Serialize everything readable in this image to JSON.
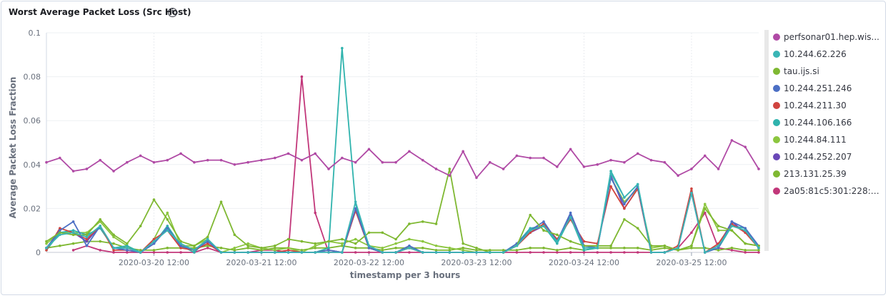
{
  "panel": {
    "title": "Worst Average Packet Loss (Src Host)",
    "info_icon": "info-icon"
  },
  "chart_data": {
    "type": "line",
    "ylabel": "Average Packet Loss Fraction",
    "xlabel": "timestamp per 3 hours",
    "ylim": [
      0,
      0.1
    ],
    "yticks": [
      "0",
      "0.02",
      "0.04",
      "0.06",
      "0.08",
      "0.1"
    ],
    "xticks": [
      "2020-03-20 12:00",
      "2020-03-21 12:00",
      "2020-03-22 12:00",
      "2020-03-23 12:00",
      "2020-03-24 12:00",
      "2020-03-25 12:00"
    ],
    "xtick_index": [
      8,
      16,
      24,
      32,
      40,
      48
    ],
    "n_points": 54,
    "grid": true,
    "legend_position": "right",
    "series": [
      {
        "name": "perfsonar01.hep.wis...",
        "color": "#b04aa5",
        "values": [
          0.041,
          0.043,
          0.037,
          0.038,
          0.042,
          0.037,
          0.041,
          0.044,
          0.041,
          0.042,
          0.045,
          0.041,
          0.042,
          0.042,
          0.04,
          0.041,
          0.042,
          0.043,
          0.045,
          0.042,
          0.045,
          0.038,
          0.043,
          0.041,
          0.047,
          0.041,
          0.041,
          0.046,
          0.042,
          0.038,
          0.035,
          0.046,
          0.034,
          0.041,
          0.038,
          0.044,
          0.043,
          0.043,
          0.039,
          0.047,
          0.039,
          0.04,
          0.042,
          0.041,
          0.045,
          0.042,
          0.041,
          0.035,
          0.038,
          0.044,
          0.038,
          0.051,
          0.048,
          0.038
        ]
      },
      {
        "name": "10.244.62.226",
        "color": "#3ab5b5",
        "values": [
          0.002,
          0.008,
          0.009,
          0.007,
          0.012,
          0.002,
          0.002,
          0,
          0.005,
          0.01,
          0.004,
          0.001,
          0.006,
          0,
          0,
          0,
          0,
          0,
          0,
          0,
          0,
          0,
          0,
          0.023,
          0.003,
          0,
          0,
          0.002,
          0,
          0,
          0,
          0,
          0,
          0,
          0,
          0.003,
          0.01,
          0.012,
          0.005,
          0.016,
          0.002,
          0.002,
          0.036,
          0.025,
          0.031,
          0,
          0,
          0.002,
          0.027,
          0,
          0.003,
          0.012,
          0.01,
          0.002
        ]
      },
      {
        "name": "tau.ijs.si",
        "color": "#7fb832",
        "values": [
          0.005,
          0.009,
          0.008,
          0.008,
          0.015,
          0.008,
          0.004,
          0.012,
          0.024,
          0.015,
          0.005,
          0.003,
          0.007,
          0.023,
          0.008,
          0.003,
          0.002,
          0.003,
          0.006,
          0.005,
          0.004,
          0.005,
          0.006,
          0.004,
          0.009,
          0.009,
          0.006,
          0.013,
          0.014,
          0.013,
          0.038,
          0.004,
          0.002,
          0,
          0,
          0.003,
          0.017,
          0.01,
          0.008,
          0.005,
          0.003,
          0.003,
          0.003,
          0.015,
          0.011,
          0.003,
          0.003,
          0.001,
          0.003,
          0.02,
          0.012,
          0.01,
          0.004,
          0.003
        ]
      },
      {
        "name": "10.244.251.246",
        "color": "#4c6fc4",
        "values": [
          0.002,
          0.01,
          0.014,
          0.003,
          0.012,
          0.002,
          0.001,
          0,
          0.004,
          0.011,
          0.003,
          0.001,
          0.005,
          0,
          0,
          0,
          0,
          0,
          0,
          0,
          0,
          0.001,
          0,
          0.02,
          0.002,
          0,
          0,
          0.003,
          0,
          0,
          0,
          0,
          0,
          0,
          0,
          0.004,
          0.01,
          0.014,
          0.005,
          0.018,
          0.003,
          0.002,
          0.034,
          0.022,
          0.03,
          0,
          0,
          0.002,
          0.027,
          0,
          0.002,
          0.014,
          0.011,
          0.003
        ]
      },
      {
        "name": "10.244.211.30",
        "color": "#d0443f",
        "values": [
          0.001,
          0.011,
          0.009,
          0.006,
          0.012,
          0.001,
          0.001,
          0,
          0.006,
          0.01,
          0.002,
          0.001,
          0.004,
          0,
          0,
          0,
          0,
          0,
          0.001,
          0,
          0,
          0.001,
          0,
          0.019,
          0.002,
          0,
          0,
          0.002,
          0,
          0,
          0,
          0,
          0,
          0,
          0,
          0.003,
          0.009,
          0.013,
          0.006,
          0.015,
          0.005,
          0.004,
          0.03,
          0.02,
          0.029,
          0,
          0,
          0.003,
          0.029,
          0,
          0.004,
          0.013,
          0.009,
          0.002
        ]
      },
      {
        "name": "10.244.106.166",
        "color": "#2fb3ad",
        "values": [
          0.001,
          0.009,
          0.01,
          0.008,
          0.011,
          0.002,
          0.003,
          0,
          0.004,
          0.012,
          0.003,
          0,
          0.006,
          0,
          0,
          0,
          0,
          0,
          0,
          0,
          0,
          0.002,
          0.093,
          0.022,
          0.002,
          0,
          0,
          0.002,
          0,
          0,
          0,
          0,
          0,
          0,
          0,
          0.004,
          0.011,
          0.012,
          0.004,
          0.016,
          0.001,
          0.002,
          0.037,
          0.025,
          0.031,
          0,
          0,
          0.002,
          0.028,
          0,
          0.002,
          0.012,
          0.011,
          0.002
        ]
      },
      {
        "name": "10.244.84.111",
        "color": "#8cc63f",
        "values": [
          0.004,
          0.009,
          0.009,
          0.009,
          0.014,
          0.007,
          0.003,
          0,
          0.006,
          0.018,
          0.003,
          0.003,
          0.006,
          0,
          0.002,
          0.004,
          0.002,
          0.001,
          0.002,
          0,
          0.003,
          0.005,
          0.004,
          0.006,
          0.003,
          0.002,
          0.004,
          0.006,
          0.005,
          0.003,
          0.002,
          0.001,
          0,
          0,
          0,
          0.003,
          0.01,
          0.012,
          0.005,
          0.016,
          0.003,
          0.003,
          0.034,
          0.023,
          0.029,
          0.002,
          0.003,
          0.001,
          0.003,
          0.022,
          0.01,
          0.01,
          0.004,
          0.003
        ]
      },
      {
        "name": "10.244.252.207",
        "color": "#6a48b8",
        "values": [
          0.002,
          0.009,
          0.009,
          0.005,
          0.012,
          0.002,
          0.002,
          0,
          0.004,
          0.012,
          0.003,
          0.001,
          0.006,
          0,
          0,
          0,
          0,
          0,
          0,
          0,
          0,
          0.001,
          0,
          0.019,
          0.003,
          0,
          0,
          0.002,
          0,
          0,
          0,
          0,
          0,
          0,
          0,
          0.003,
          0.009,
          0.012,
          0.005,
          0.017,
          0.003,
          0.002,
          0.035,
          0.02,
          0.029,
          0,
          0,
          0.002,
          0.027,
          0,
          0.003,
          0.014,
          0.009,
          0.003
        ]
      },
      {
        "name": "213.131.25.39",
        "color": "#7fb832",
        "values": [
          0.002,
          0.003,
          0.004,
          0.005,
          0.005,
          0.004,
          0.002,
          0.001,
          0.001,
          0.002,
          0.002,
          0.002,
          0.003,
          0.002,
          0.001,
          0.002,
          0.001,
          0.002,
          0.002,
          0.001,
          0.002,
          0.002,
          0.003,
          0.002,
          0.002,
          0.001,
          0.002,
          0.002,
          0.002,
          0.001,
          0.001,
          0.002,
          0.001,
          0.001,
          0.001,
          0.001,
          0.002,
          0.002,
          0.001,
          0.002,
          0.001,
          0.002,
          0.002,
          0.002,
          0.002,
          0.001,
          0.002,
          0.001,
          0.002,
          0.002,
          0.001,
          0.002,
          0.001,
          0.001
        ]
      },
      {
        "name": "2a05:81c5:301:228::...",
        "color": "#c2377a",
        "values": [
          null,
          null,
          0.001,
          0.003,
          0.001,
          0,
          0,
          0,
          0,
          0,
          0,
          0,
          0.002,
          0,
          0,
          0,
          0.001,
          0.001,
          0,
          0.08,
          0.018,
          0,
          0,
          0,
          0,
          0,
          0,
          0,
          0,
          0,
          0,
          0,
          0,
          0,
          0,
          0,
          0,
          0,
          0,
          0,
          0,
          0,
          0,
          0,
          0,
          0,
          0,
          0.002,
          0.009,
          0.018,
          0.002,
          0.001,
          0,
          0
        ]
      }
    ]
  }
}
